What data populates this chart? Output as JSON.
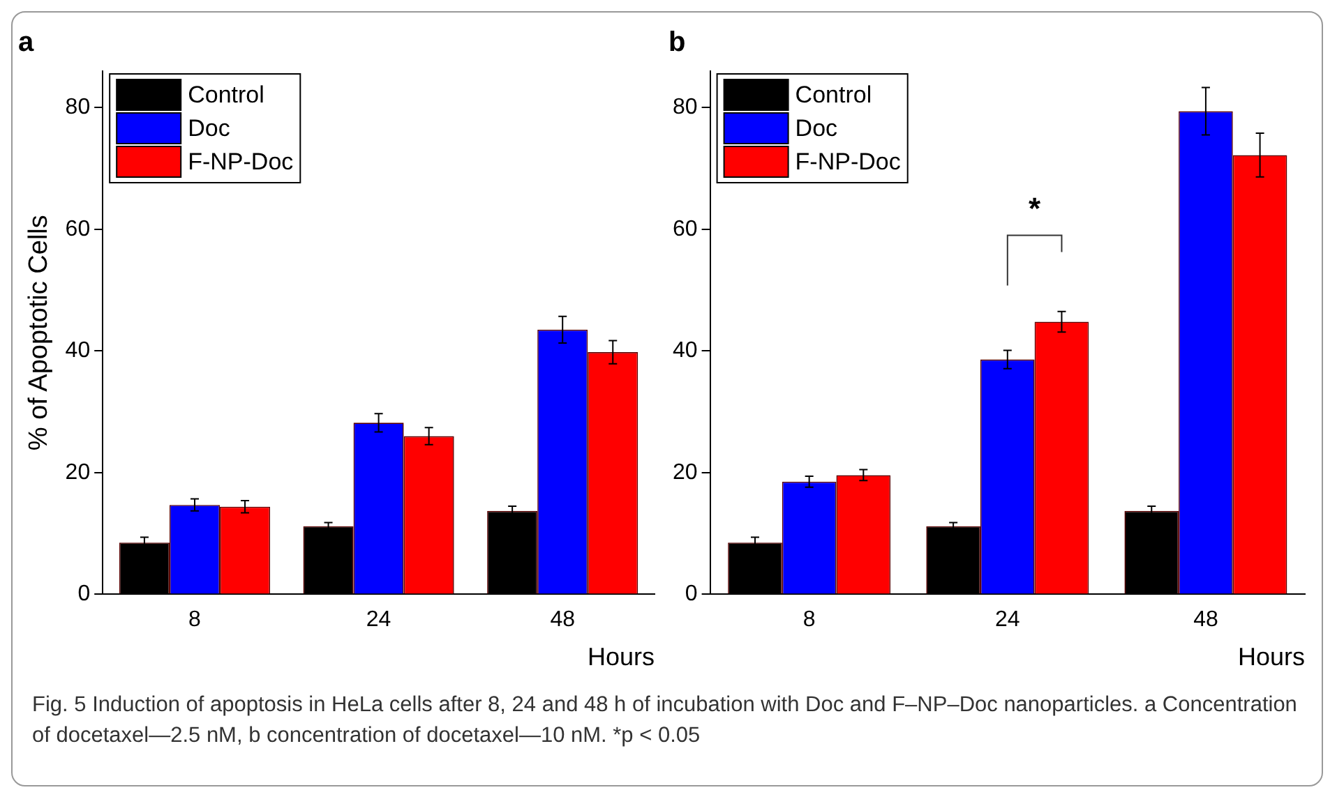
{
  "chart_data": [
    {
      "type": "bar",
      "title": "a",
      "xlabel": "Hours",
      "ylabel": "% of Apoptotic Cells",
      "categories": [
        "8",
        "24",
        "48"
      ],
      "ylim": [
        0,
        86
      ],
      "yticks": [
        0,
        20,
        40,
        60,
        80
      ],
      "grid": false,
      "legend": "top left",
      "annotations": [
        "Fig. 5 Induction of apoptosis in HeLa cells after 8, 24 and 48 h of incubation with Doc and F–NP–Doc nanoparticles. a Concentration of docetaxel—2.5 nM, b concentration of docetaxel—10 nM. *p < 0.05"
      ],
      "series": [
        {
          "name": "Control",
          "color": "#000000",
          "values": [
            8.5,
            11.2,
            13.7
          ],
          "errors": [
            0.9,
            0.6,
            0.8
          ]
        },
        {
          "name": "Doc",
          "color": "#0000ff",
          "values": [
            14.7,
            28.2,
            43.5
          ],
          "errors": [
            1.0,
            1.5,
            2.2
          ]
        },
        {
          "name": "F-NP-Doc",
          "color": "#ff0000",
          "values": [
            14.4,
            26.0,
            39.8
          ],
          "errors": [
            1.0,
            1.4,
            1.9
          ]
        }
      ]
    },
    {
      "type": "bar",
      "title": "b",
      "xlabel": "Hours",
      "categories": [
        "8",
        "24",
        "48"
      ],
      "ylim": [
        0,
        86
      ],
      "yticks": [
        0,
        20,
        40,
        60,
        80
      ],
      "grid": false,
      "legend": "top left",
      "series": [
        {
          "name": "Control",
          "color": "#000000",
          "values": [
            8.5,
            11.2,
            13.7
          ],
          "errors": [
            0.9,
            0.6,
            0.8
          ]
        },
        {
          "name": "Doc",
          "color": "#0000ff",
          "values": [
            18.5,
            38.6,
            79.4
          ],
          "errors": [
            0.9,
            1.5,
            3.9
          ]
        },
        {
          "name": "F-NP-Doc",
          "color": "#ff0000",
          "values": [
            19.6,
            44.8,
            72.2
          ],
          "errors": [
            0.9,
            1.7,
            3.6
          ]
        }
      ],
      "annotations": [
        "*"
      ]
    }
  ]
}
